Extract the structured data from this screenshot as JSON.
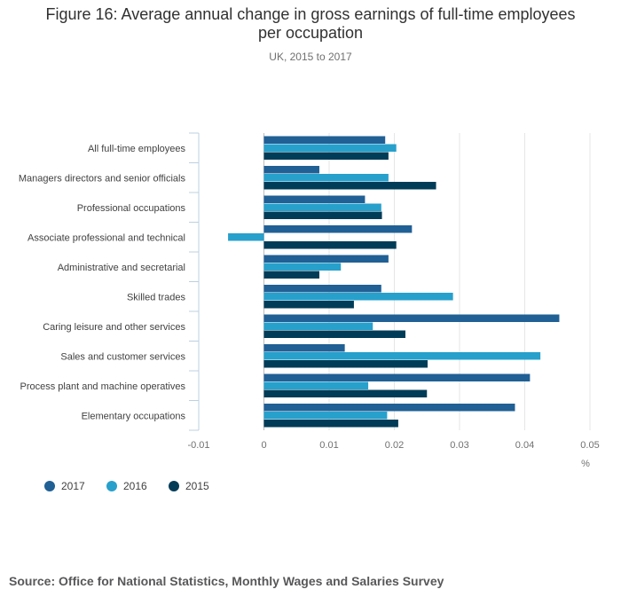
{
  "chart_data": {
    "type": "bar",
    "orientation": "horizontal",
    "title_lines": [
      "Figure 16: Average annual change in gross earnings of full-time employees",
      "per occupation"
    ],
    "subtitle": "UK, 2015 to 2017",
    "xlabel": "%",
    "ylabel": "",
    "xlim": [
      -0.01,
      0.05
    ],
    "xticks": [
      -0.01,
      0,
      0.01,
      0.02,
      0.03,
      0.04,
      0.05
    ],
    "xtick_labels": [
      "-0.01",
      "0",
      "0.01",
      "0.02",
      "0.03",
      "0.04",
      "0.05"
    ],
    "grid": true,
    "legend_position": "bottom-left",
    "categories": [
      "All full-time employees",
      "Managers directors and senior officials",
      "Professional occupations",
      "Associate professional and technical",
      "Administrative and secretarial",
      "Skilled trades",
      "Caring leisure and other services",
      "Sales and customer services",
      "Process plant and machine operatives",
      "Elementary occupations"
    ],
    "series": [
      {
        "name": "2017",
        "color": "#206095",
        "values": [
          0.0186,
          0.0085,
          0.0155,
          0.0227,
          0.0191,
          0.018,
          0.0453,
          0.0124,
          0.0408,
          0.0385
        ]
      },
      {
        "name": "2016",
        "color": "#27a0cc",
        "values": [
          0.0203,
          0.0191,
          0.018,
          -0.0055,
          0.0118,
          0.029,
          0.0167,
          0.0424,
          0.016,
          0.0189
        ]
      },
      {
        "name": "2015",
        "color": "#003c57",
        "values": [
          0.0191,
          0.0264,
          0.0181,
          0.0203,
          0.0085,
          0.0138,
          0.0217,
          0.0251,
          0.025,
          0.0206
        ]
      }
    ]
  },
  "source": "Source: Office for National Statistics, Monthly Wages and Salaries Survey"
}
